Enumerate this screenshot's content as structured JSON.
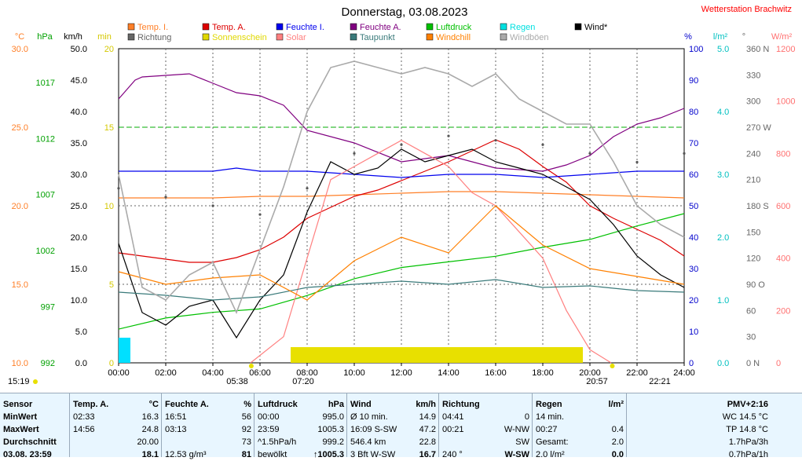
{
  "header": {
    "title": "Donnerstag, 03.08.2023",
    "station": "Wetterstation Brachwitz"
  },
  "legend": [
    {
      "label": "Temp. I.",
      "color": "#ff7f27"
    },
    {
      "label": "Temp. A.",
      "color": "#dd0000"
    },
    {
      "label": "Feuchte I.",
      "color": "#0000ee"
    },
    {
      "label": "Feuchte A.",
      "color": "#800080"
    },
    {
      "label": "Luftdruck",
      "color": "#00c000"
    },
    {
      "label": "Regen",
      "color": "#00e0e0"
    },
    {
      "label": "Wind*",
      "color": "#000000"
    },
    {
      "label": "Richtung",
      "color": "#666666"
    },
    {
      "label": "Sonnenschein",
      "color": "#e0d800"
    },
    {
      "label": "Solar",
      "color": "#ff8080"
    },
    {
      "label": "Taupunkt",
      "color": "#3a7a7a"
    },
    {
      "label": "Windchill",
      "color": "#ff8000"
    },
    {
      "label": "Windböen",
      "color": "#aaaaaa"
    }
  ],
  "axes": {
    "temp": {
      "unit": "°C",
      "ticks": [
        "30.0",
        "25.0",
        "20.0",
        "15.0",
        "10.0"
      ],
      "color": "#ff7f27"
    },
    "pressure": {
      "unit": "hPa",
      "ticks": [
        "1017",
        "1012",
        "1007",
        "1002",
        "997",
        "992"
      ],
      "color": "#00a000"
    },
    "wind": {
      "unit": "km/h",
      "ticks": [
        "50.0",
        "45.0",
        "40.0",
        "35.0",
        "30.0",
        "25.0",
        "20.0",
        "15.0",
        "10.0",
        "5.0",
        "0.0"
      ],
      "color": "#000000"
    },
    "sun": {
      "unit": "min",
      "ticks": [
        "20",
        "15",
        "10",
        "5",
        "0"
      ],
      "color": "#d4c800"
    },
    "humidity": {
      "unit": "%",
      "ticks": [
        "100",
        "90",
        "80",
        "70",
        "60",
        "50",
        "40",
        "30",
        "20",
        "10",
        "0"
      ],
      "color": "#0000cc"
    },
    "rain": {
      "unit": "l/m²",
      "ticks": [
        "5.0",
        "4.0",
        "3.0",
        "2.0",
        "1.0",
        "0.0"
      ],
      "color": "#00c0c0"
    },
    "direction": {
      "unit": "°",
      "ticks": [
        "360 N",
        "330",
        "300",
        "270 W",
        "240",
        "210",
        "180 S",
        "150",
        "120",
        "90 O",
        "60",
        "30",
        "0 N"
      ],
      "color": "#666666"
    },
    "solar": {
      "unit": "W/m²",
      "ticks": [
        "1200",
        "1000",
        "800",
        "600",
        "400",
        "200",
        "0"
      ],
      "color": "#ff7070"
    },
    "time": {
      "ticks": [
        "00:00",
        "02:00",
        "04:00",
        "06:00",
        "08:00",
        "10:00",
        "12:00",
        "14:00",
        "16:00",
        "18:00",
        "20:00",
        "22:00",
        "24:00"
      ]
    }
  },
  "sun_markers": [
    {
      "label": "15:19",
      "type": "moonset"
    },
    {
      "label": "05:38",
      "type": "sunrise"
    },
    {
      "label": "07:20",
      "type": "sunshine-start"
    },
    {
      "label": "20:57",
      "type": "sunset"
    },
    {
      "label": "22:21",
      "type": "moonrise"
    }
  ],
  "chart_data": {
    "type": "line",
    "title": "Donnerstag, 03.08.2023",
    "x_range": [
      0,
      24
    ],
    "x_unit": "hours",
    "xlabel": "",
    "series": [
      {
        "name": "Temp. I.",
        "axis": "temp",
        "x": [
          0,
          2,
          4,
          6,
          8,
          10,
          12,
          14,
          16,
          18,
          20,
          22,
          24
        ],
        "values": [
          20.5,
          20.5,
          20.5,
          20.6,
          20.6,
          20.7,
          20.8,
          20.9,
          20.9,
          20.8,
          20.7,
          20.6,
          20.5
        ]
      },
      {
        "name": "Temp. A.",
        "axis": "temp",
        "x": [
          0,
          1,
          2,
          3,
          4,
          5,
          6,
          7,
          8,
          9,
          10,
          11,
          12,
          13,
          14,
          15,
          16,
          17,
          18,
          19,
          20,
          21,
          22,
          23,
          24
        ],
        "values": [
          17.0,
          16.8,
          16.6,
          16.4,
          16.4,
          16.7,
          17.2,
          18.0,
          19.2,
          19.9,
          20.6,
          21.0,
          21.6,
          22.2,
          22.8,
          23.5,
          24.2,
          23.6,
          22.5,
          21.5,
          20.0,
          19.2,
          18.5,
          17.8,
          16.8
        ]
      },
      {
        "name": "Feuchte I.",
        "axis": "humidity",
        "x": [
          0,
          4,
          5,
          6,
          8,
          10,
          12,
          14,
          16,
          18,
          20,
          22,
          24
        ],
        "values": [
          61,
          61,
          62,
          61,
          61,
          60,
          59,
          60,
          60,
          59,
          60,
          61,
          61
        ]
      },
      {
        "name": "Feuchte A.",
        "axis": "humidity",
        "x": [
          0,
          0.7,
          1,
          3,
          4,
          5,
          6,
          7,
          8,
          10,
          12,
          14,
          16,
          18,
          19,
          20,
          21,
          22,
          23,
          24
        ],
        "values": [
          84,
          90,
          91,
          92,
          89,
          86,
          85,
          82,
          74,
          70,
          64,
          66,
          62,
          61,
          63,
          66,
          72,
          76,
          78,
          81
        ]
      },
      {
        "name": "Luftdruck",
        "axis": "pressure",
        "x": [
          0,
          2,
          4,
          6,
          8,
          10,
          12,
          14,
          16,
          18,
          20,
          22,
          24
        ],
        "values": [
          995.0,
          996.0,
          996.5,
          996.8,
          998.0,
          999.5,
          1000.5,
          1001.0,
          1001.5,
          1002.3,
          1003.0,
          1004.2,
          1005.3
        ]
      },
      {
        "name": "Regen",
        "axis": "rain",
        "x": [
          0,
          0.5
        ],
        "values": [
          0.4,
          0.4
        ]
      },
      {
        "name": "Wind*",
        "axis": "wind",
        "x": [
          0,
          1,
          2,
          3,
          4,
          5,
          6,
          7,
          8,
          9,
          10,
          11,
          12,
          13,
          14,
          15,
          16,
          17,
          18,
          19,
          20,
          21,
          22,
          23,
          24
        ],
        "values": [
          19,
          8,
          6,
          9,
          10,
          4,
          10,
          14,
          24,
          32,
          30,
          31,
          34,
          32,
          33,
          34,
          32,
          31,
          30,
          28,
          26,
          22,
          17,
          14,
          12
        ]
      },
      {
        "name": "Richtung",
        "axis": "direction",
        "x": [
          0,
          2,
          4,
          6,
          8,
          10,
          12,
          14,
          16,
          18,
          20,
          22,
          24
        ],
        "values": [
          200,
          190,
          180,
          170,
          200,
          240,
          250,
          260,
          255,
          250,
          240,
          230,
          240
        ]
      },
      {
        "name": "Sonnenschein",
        "axis": "sun",
        "x": [
          7.3,
          19.7
        ],
        "values": [
          1,
          1
        ]
      },
      {
        "name": "Solar",
        "axis": "solar",
        "x": [
          5.6,
          7,
          8,
          9,
          10,
          11,
          12,
          13,
          14,
          15,
          16,
          17,
          18,
          19,
          20,
          20.9
        ],
        "values": [
          0,
          100,
          400,
          700,
          750,
          800,
          850,
          800,
          750,
          650,
          600,
          500,
          400,
          200,
          50,
          0
        ]
      },
      {
        "name": "Taupunkt",
        "axis": "temp",
        "x": [
          0,
          2,
          4,
          6,
          8,
          10,
          12,
          14,
          16,
          18,
          20,
          22,
          24
        ],
        "values": [
          14.5,
          14.3,
          14.0,
          14.2,
          14.8,
          15.0,
          15.2,
          15.0,
          15.3,
          14.8,
          14.9,
          14.6,
          14.5
        ]
      },
      {
        "name": "Windchill",
        "axis": "temp",
        "x": [
          0,
          2,
          4,
          6,
          8,
          10,
          12,
          14,
          16,
          18,
          20,
          22,
          24
        ],
        "values": [
          15.8,
          15.0,
          15.4,
          15.6,
          14.0,
          16.5,
          18.0,
          17.0,
          20.0,
          17.5,
          16.0,
          15.5,
          15.0
        ]
      },
      {
        "name": "Windböen",
        "axis": "wind",
        "x": [
          0,
          1,
          2,
          3,
          4,
          5,
          6,
          7,
          8,
          9,
          10,
          11,
          12,
          13,
          14,
          15,
          16,
          17,
          18,
          19,
          20,
          21,
          22,
          23,
          24
        ],
        "values": [
          30,
          12,
          10,
          14,
          16,
          8,
          18,
          28,
          40,
          47,
          48,
          47,
          46,
          47,
          46,
          44,
          46,
          42,
          40,
          38,
          38,
          32,
          25,
          22,
          20
        ]
      }
    ]
  },
  "stats": {
    "col1": {
      "header": "Sensor",
      "rows": [
        "MinWert",
        "MaxWert",
        "Durchschnitt",
        "03.08. 23:59"
      ]
    },
    "col2": {
      "header": "Temp. A.",
      "unit": "°C",
      "rows": [
        [
          "02:33",
          "16.3"
        ],
        [
          "14:56",
          "24.8"
        ],
        [
          "",
          "20.00"
        ],
        [
          "",
          "18.1"
        ]
      ]
    },
    "col3": {
      "header": "Feuchte A.",
      "unit": "%",
      "rows": [
        [
          "16:51",
          "56"
        ],
        [
          "03:13",
          "92"
        ],
        [
          "",
          "73"
        ],
        [
          "12.53 g/m³",
          "81"
        ]
      ]
    },
    "col4": {
      "header": "Luftdruck",
      "unit": "hPa",
      "rows": [
        [
          "00:00",
          "995.0"
        ],
        [
          "23:59",
          "1005.3"
        ],
        [
          "^1.5hPa/h",
          "999.2"
        ],
        [
          "bewölkt",
          "↑1005.3"
        ]
      ]
    },
    "col5": {
      "header": "Wind",
      "unit": "km/h",
      "rows": [
        [
          "Ø 10 min.",
          "14.9"
        ],
        [
          "16:09   S-SW",
          "47.2"
        ],
        [
          "546.4 km",
          "22.8"
        ],
        [
          "3 Bft W-SW",
          "16.7"
        ]
      ]
    },
    "col6": {
      "header": "Richtung",
      "unit": "",
      "rows": [
        [
          "04:41",
          "0"
        ],
        [
          "00:21",
          "W-NW"
        ],
        [
          "",
          "SW"
        ],
        [
          "240 °",
          "W-SW"
        ]
      ]
    },
    "col7": {
      "header": "Regen",
      "unit": "l/m²",
      "rows": [
        [
          "14 min.",
          ""
        ],
        [
          "00:27",
          "0.4"
        ],
        [
          "Gesamt:",
          "2.0"
        ],
        [
          "2.0 l/m²",
          "0.0"
        ]
      ]
    },
    "col8": {
      "header": "PMV+2:16",
      "rows": [
        "WC 14.5 °C",
        "TP 14.8 °C",
        "1.7hPa/3h",
        "0.7hPa/1h"
      ]
    }
  }
}
